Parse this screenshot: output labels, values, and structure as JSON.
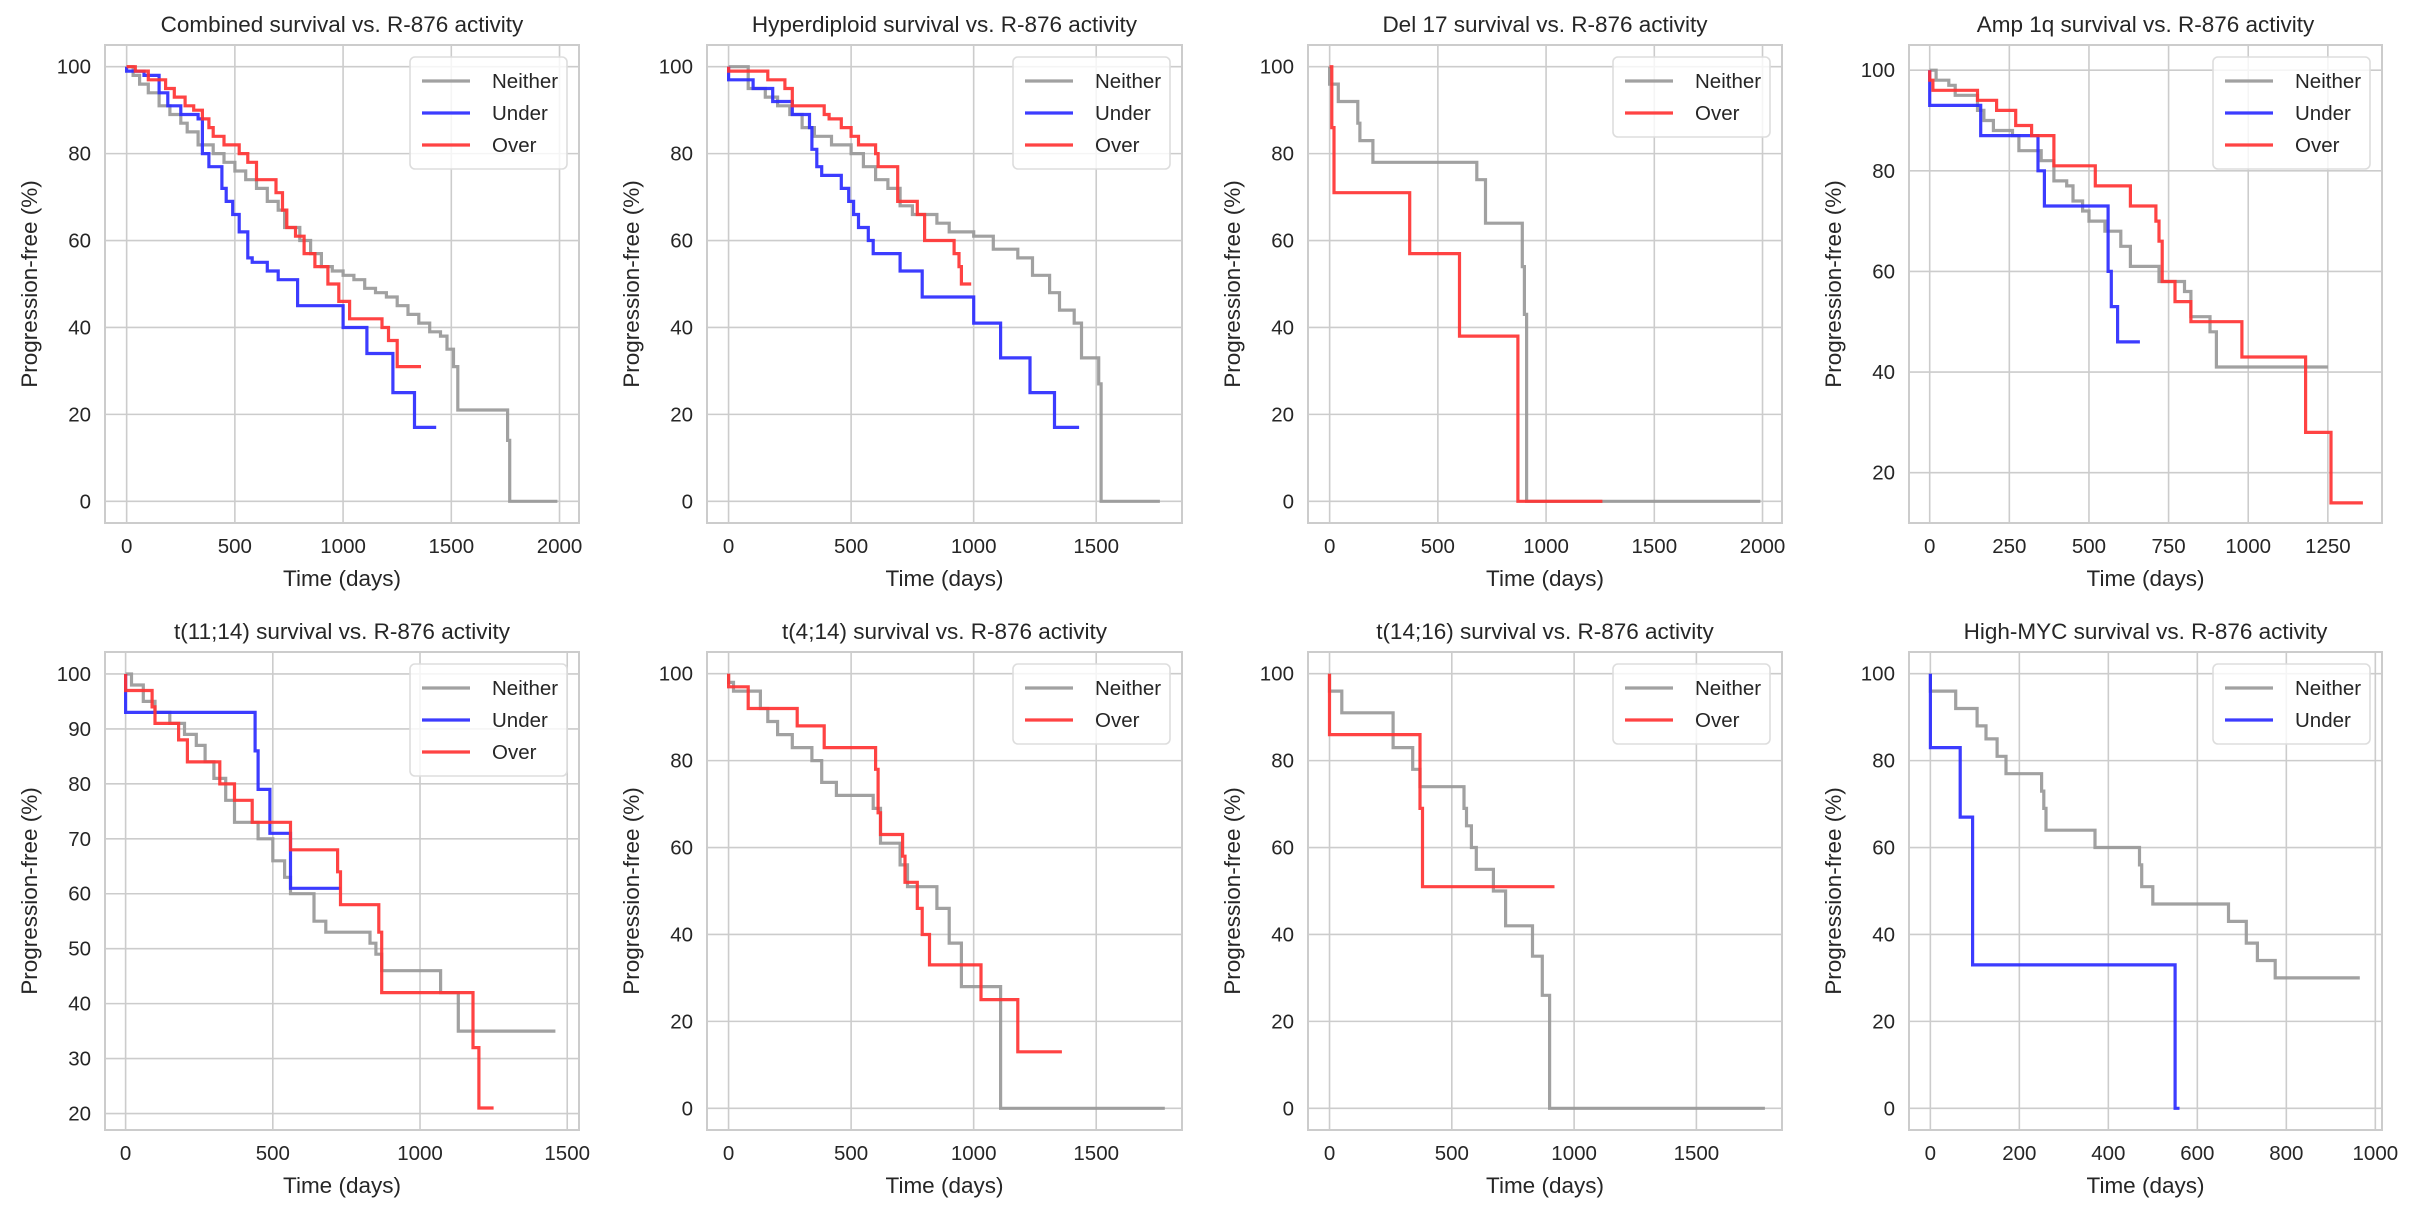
{
  "figure": {
    "layout": "2 rows x 4 columns",
    "legend_labels": [
      "Neither",
      "Under",
      "Over"
    ]
  },
  "colors": {
    "Neither": "#999999",
    "Under": "#2b2bff",
    "Over": "#ff3333",
    "grid": "#cccccc",
    "spine": "#cccccc"
  },
  "chart_data": [
    {
      "type": "line",
      "step": true,
      "title": "Combined survival vs. R-876 activity",
      "xlabel": "Time (days)",
      "ylabel": "Progression-free (%)",
      "xlim": [
        -100,
        2090
      ],
      "ylim": [
        -5,
        105
      ],
      "xticks": [
        0,
        500,
        1000,
        1500,
        2000
      ],
      "yticks": [
        0,
        20,
        40,
        60,
        80,
        100
      ],
      "grid": true,
      "legend": "top-right",
      "series": [
        {
          "name": "Neither",
          "x": [
            0,
            30,
            60,
            100,
            150,
            200,
            250,
            280,
            330,
            400,
            450,
            500,
            550,
            600,
            650,
            700,
            730,
            800,
            850,
            900,
            950,
            1000,
            1050,
            1100,
            1150,
            1200,
            1250,
            1300,
            1350,
            1400,
            1450,
            1480,
            1510,
            1530,
            1760,
            1770,
            1990
          ],
          "y": [
            100,
            98,
            96,
            94,
            91,
            89,
            87,
            85,
            82,
            80,
            78,
            76,
            74,
            72,
            69,
            67,
            63,
            60,
            57,
            54,
            53,
            52,
            51,
            49,
            48,
            47,
            45,
            43,
            41,
            39,
            38,
            35,
            31,
            21,
            14,
            0,
            0
          ]
        },
        {
          "name": "Under",
          "x": [
            0,
            80,
            150,
            190,
            250,
            330,
            350,
            380,
            440,
            460,
            490,
            520,
            560,
            580,
            650,
            700,
            790,
            1000,
            1110,
            1230,
            1330,
            1430
          ],
          "y": [
            99,
            98,
            94,
            91,
            89,
            88,
            80,
            77,
            72,
            69,
            66,
            62,
            56,
            55,
            53,
            51,
            45,
            40,
            34,
            25,
            17,
            17
          ]
        },
        {
          "name": "Over",
          "x": [
            0,
            40,
            100,
            180,
            220,
            270,
            310,
            350,
            380,
            400,
            450,
            520,
            560,
            600,
            640,
            690,
            720,
            740,
            780,
            820,
            870,
            930,
            980,
            1030,
            1180,
            1210,
            1250,
            1360
          ],
          "y": [
            100,
            99,
            97,
            95,
            93,
            91,
            90,
            88,
            86,
            84,
            82,
            80,
            78,
            74,
            74,
            71,
            67,
            63,
            61,
            57,
            54,
            50,
            46,
            42,
            40,
            37,
            31,
            31
          ]
        }
      ]
    },
    {
      "type": "line",
      "step": true,
      "title": "Hyperdiploid survival vs. R-876 activity",
      "xlabel": "Time (days)",
      "ylabel": "Progression-free (%)",
      "xlim": [
        -88,
        1850
      ],
      "ylim": [
        -5,
        105
      ],
      "xticks": [
        0,
        500,
        1000,
        1500
      ],
      "yticks": [
        0,
        20,
        40,
        60,
        80,
        100
      ],
      "grid": true,
      "legend": "top-right",
      "series": [
        {
          "name": "Neither",
          "x": [
            0,
            80,
            150,
            200,
            250,
            300,
            350,
            420,
            500,
            550,
            600,
            650,
            700,
            750,
            850,
            900,
            1000,
            1080,
            1180,
            1240,
            1310,
            1350,
            1410,
            1440,
            1510,
            1520,
            1530,
            1760
          ],
          "y": [
            100,
            95,
            93,
            91,
            89,
            86,
            84,
            82,
            80,
            77,
            74,
            72,
            68,
            66,
            64,
            62,
            61,
            58,
            56,
            52,
            48,
            44,
            41,
            33,
            27,
            0,
            0,
            0
          ]
        },
        {
          "name": "Under",
          "x": [
            0,
            100,
            180,
            260,
            330,
            340,
            360,
            380,
            460,
            490,
            510,
            530,
            570,
            590,
            700,
            790,
            1000,
            1110,
            1230,
            1330,
            1430
          ],
          "y": [
            97,
            95,
            92,
            89,
            86,
            81,
            77,
            75,
            72,
            69,
            66,
            63,
            60,
            57,
            53,
            47,
            41,
            33,
            25,
            17,
            17
          ]
        },
        {
          "name": "Over",
          "x": [
            0,
            160,
            230,
            260,
            390,
            410,
            460,
            500,
            530,
            600,
            610,
            690,
            770,
            800,
            920,
            940,
            950,
            990
          ],
          "y": [
            99,
            97,
            95,
            91,
            89,
            88,
            86,
            84,
            82,
            80,
            77,
            69,
            66,
            60,
            57,
            54,
            50,
            50
          ]
        }
      ]
    },
    {
      "type": "line",
      "step": true,
      "title": "Del 17 survival vs. R-876 activity",
      "xlabel": "Time (days)",
      "ylabel": "Progression-free (%)",
      "xlim": [
        -100,
        2090
      ],
      "ylim": [
        -5,
        105
      ],
      "xticks": [
        0,
        500,
        1000,
        1500,
        2000
      ],
      "yticks": [
        0,
        20,
        40,
        60,
        80,
        100
      ],
      "grid": true,
      "legend": "top-right",
      "series": [
        {
          "name": "Neither",
          "x": [
            0,
            40,
            130,
            140,
            200,
            680,
            720,
            890,
            900,
            910,
            1990
          ],
          "y": [
            96,
            92,
            87,
            83,
            78,
            74,
            64,
            54,
            43,
            0,
            0
          ]
        },
        {
          "name": "Over",
          "x": [
            0,
            10,
            20,
            370,
            600,
            870,
            1260
          ],
          "y": [
            100,
            86,
            71,
            57,
            38,
            0,
            0
          ]
        }
      ]
    },
    {
      "type": "line",
      "step": true,
      "title": "Amp 1q survival vs. R-876 activity",
      "xlabel": "Time (days)",
      "ylabel": "Progression-free (%)",
      "xlim": [
        -65,
        1420
      ],
      "ylim": [
        10,
        105
      ],
      "xticks": [
        0,
        250,
        500,
        750,
        1000,
        1250
      ],
      "yticks": [
        20,
        40,
        60,
        80,
        100
      ],
      "grid": true,
      "legend": "top-right",
      "series": [
        {
          "name": "Neither",
          "x": [
            0,
            20,
            60,
            80,
            150,
            170,
            200,
            260,
            280,
            350,
            390,
            430,
            450,
            480,
            500,
            550,
            600,
            630,
            720,
            800,
            820,
            880,
            900,
            1250
          ],
          "y": [
            100,
            98,
            97,
            95,
            92,
            90,
            88,
            87,
            84,
            82,
            78,
            77,
            74,
            72,
            70,
            68,
            65,
            61,
            58,
            56,
            51,
            48,
            41,
            41
          ]
        },
        {
          "name": "Under",
          "x": [
            0,
            160,
            340,
            360,
            560,
            570,
            590,
            660
          ],
          "y": [
            93,
            87,
            80,
            73,
            60,
            53,
            46,
            46
          ]
        },
        {
          "name": "Over",
          "x": [
            0,
            10,
            150,
            210,
            270,
            320,
            390,
            520,
            630,
            710,
            720,
            730,
            770,
            820,
            980,
            1180,
            1260,
            1360
          ],
          "y": [
            98,
            96,
            94,
            92,
            89,
            87,
            81,
            77,
            73,
            70,
            66,
            58,
            54,
            50,
            43,
            28,
            14,
            14
          ]
        }
      ]
    },
    {
      "type": "line",
      "step": true,
      "title": "t(11;14) survival vs. R-876 activity",
      "xlabel": "Time (days)",
      "ylabel": "Progression-free (%)",
      "xlim": [
        -70,
        1540
      ],
      "ylim": [
        17,
        104
      ],
      "xticks": [
        0,
        500,
        1000,
        1500
      ],
      "yticks": [
        20,
        30,
        40,
        50,
        60,
        70,
        80,
        90,
        100
      ],
      "grid": true,
      "legend": "top-right",
      "series": [
        {
          "name": "Neither",
          "x": [
            0,
            20,
            60,
            100,
            150,
            200,
            240,
            270,
            300,
            340,
            370,
            430,
            450,
            500,
            540,
            560,
            640,
            680,
            830,
            850,
            870,
            1070,
            1130,
            1460
          ],
          "y": [
            100,
            98,
            95,
            93,
            91,
            89,
            87,
            84,
            81,
            77,
            73,
            73,
            70,
            66,
            63,
            60,
            55,
            53,
            51,
            49,
            46,
            42,
            35,
            35
          ]
        },
        {
          "name": "Under",
          "x": [
            0,
            440,
            450,
            490,
            560,
            730
          ],
          "y": [
            93,
            86,
            79,
            71,
            61,
            61
          ]
        },
        {
          "name": "Over",
          "x": [
            0,
            90,
            100,
            180,
            210,
            320,
            370,
            430,
            560,
            720,
            730,
            860,
            870,
            1180,
            1200,
            1250
          ],
          "y": [
            97,
            94,
            91,
            88,
            84,
            80,
            77,
            73,
            68,
            64,
            58,
            53,
            42,
            32,
            21,
            21
          ]
        }
      ]
    },
    {
      "type": "line",
      "step": true,
      "title": "t(4;14) survival vs. R-876 activity",
      "xlabel": "Time (days)",
      "ylabel": "Progression-free (%)",
      "xlim": [
        -88,
        1850
      ],
      "ylim": [
        -5,
        105
      ],
      "xticks": [
        0,
        500,
        1000,
        1500
      ],
      "yticks": [
        0,
        20,
        40,
        60,
        80,
        100
      ],
      "grid": true,
      "legend": "top-right",
      "series": [
        {
          "name": "Neither",
          "x": [
            0,
            20,
            130,
            160,
            200,
            260,
            340,
            380,
            440,
            590,
            620,
            700,
            730,
            850,
            900,
            950,
            1110,
            1780
          ],
          "y": [
            98,
            96,
            92,
            89,
            86,
            83,
            80,
            75,
            72,
            69,
            61,
            56,
            51,
            46,
            38,
            28,
            0,
            0
          ]
        },
        {
          "name": "Over",
          "x": [
            0,
            80,
            280,
            390,
            600,
            610,
            620,
            710,
            720,
            770,
            790,
            820,
            1030,
            1180,
            1360
          ],
          "y": [
            97,
            92,
            88,
            83,
            78,
            68,
            63,
            58,
            52,
            46,
            40,
            33,
            25,
            13,
            13
          ]
        }
      ]
    },
    {
      "type": "line",
      "step": true,
      "title": "t(14;16) survival vs. R-876 activity",
      "xlabel": "Time (days)",
      "ylabel": "Progression-free (%)",
      "xlim": [
        -88,
        1850
      ],
      "ylim": [
        -5,
        105
      ],
      "xticks": [
        0,
        500,
        1000,
        1500
      ],
      "yticks": [
        0,
        20,
        40,
        60,
        80,
        100
      ],
      "grid": true,
      "legend": "top-right",
      "series": [
        {
          "name": "Neither",
          "x": [
            0,
            50,
            260,
            340,
            370,
            550,
            560,
            580,
            600,
            670,
            720,
            830,
            870,
            900,
            1780
          ],
          "y": [
            96,
            91,
            83,
            78,
            74,
            69,
            65,
            60,
            55,
            50,
            42,
            35,
            26,
            0,
            0
          ]
        },
        {
          "name": "Over",
          "x": [
            0,
            370,
            380,
            920
          ],
          "y": [
            86,
            69,
            51,
            51
          ]
        }
      ]
    },
    {
      "type": "line",
      "step": true,
      "title": "High-MYC survival vs. R-876 activity",
      "xlabel": "Time (days)",
      "ylabel": "Progression-free (%)",
      "xlim": [
        -48,
        1015
      ],
      "ylim": [
        -5,
        105
      ],
      "xticks": [
        0,
        200,
        400,
        600,
        800,
        1000
      ],
      "yticks": [
        0,
        20,
        40,
        60,
        80,
        100
      ],
      "grid": true,
      "legend": "top-right",
      "series": [
        {
          "name": "Neither",
          "x": [
            0,
            57,
            105,
            125,
            150,
            170,
            250,
            255,
            260,
            370,
            470,
            475,
            500,
            670,
            710,
            735,
            775,
            965
          ],
          "y": [
            96,
            92,
            88,
            85,
            81,
            77,
            73,
            69,
            64,
            60,
            56,
            51,
            47,
            43,
            38,
            34,
            30,
            30
          ]
        },
        {
          "name": "Under",
          "x": [
            0,
            67,
            95,
            550,
            560
          ],
          "y": [
            83,
            67,
            33,
            0,
            0
          ]
        }
      ]
    }
  ]
}
